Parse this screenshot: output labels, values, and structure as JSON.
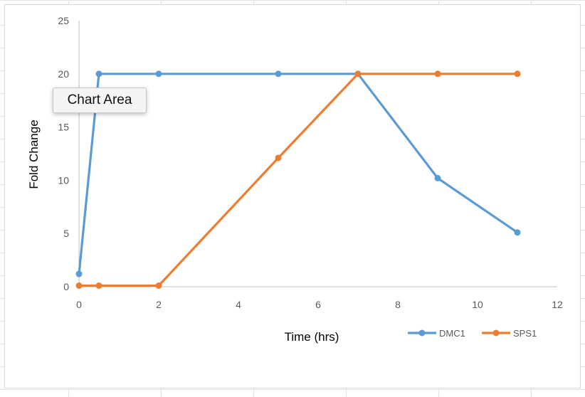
{
  "tooltip": {
    "label": "Chart Area"
  },
  "chart_data": {
    "type": "line",
    "xlabel": "Time (hrs)",
    "ylabel": "Fold Change",
    "xlim": [
      0,
      12
    ],
    "ylim": [
      0,
      25
    ],
    "x_ticks": [
      0,
      2,
      4,
      6,
      8,
      10,
      12
    ],
    "y_ticks": [
      0,
      5,
      10,
      15,
      20,
      25
    ],
    "grid": false,
    "legend_position": "bottom-right",
    "series": [
      {
        "name": "DMC1",
        "color": "#5b9bd5",
        "x": [
          0,
          0.5,
          2,
          5,
          7,
          9,
          11
        ],
        "y": [
          1.2,
          20,
          20,
          20,
          20,
          10.2,
          5.1
        ]
      },
      {
        "name": "SPS1",
        "color": "#ed7d31",
        "x": [
          0,
          0.5,
          2,
          5,
          7,
          9,
          11
        ],
        "y": [
          0.1,
          0.1,
          0.1,
          12.1,
          20,
          20,
          20
        ]
      }
    ]
  }
}
